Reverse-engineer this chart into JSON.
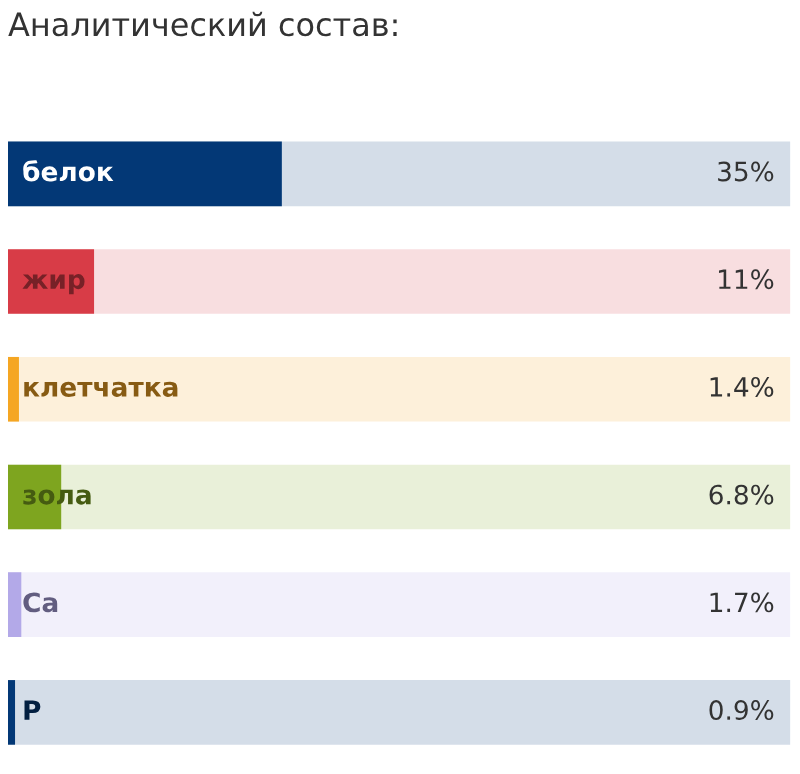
{
  "chart_data": {
    "type": "bar",
    "orientation": "horizontal",
    "title": "Аналитический состав:",
    "categories": [
      "белок",
      "жир",
      "клетчатка",
      "зола",
      "Ca",
      "P"
    ],
    "values": [
      35,
      11,
      1.4,
      6.8,
      1.7,
      0.9
    ],
    "colors": [
      "#033876",
      "#d83c47",
      "#f5a623",
      "#7ea51f",
      "#b3a9e8",
      "#033876"
    ],
    "value_labels": [
      "35%",
      "11%",
      "1.4%",
      "6.8%",
      "1.7%",
      "0.9%"
    ],
    "xlim": [
      0,
      100
    ]
  }
}
